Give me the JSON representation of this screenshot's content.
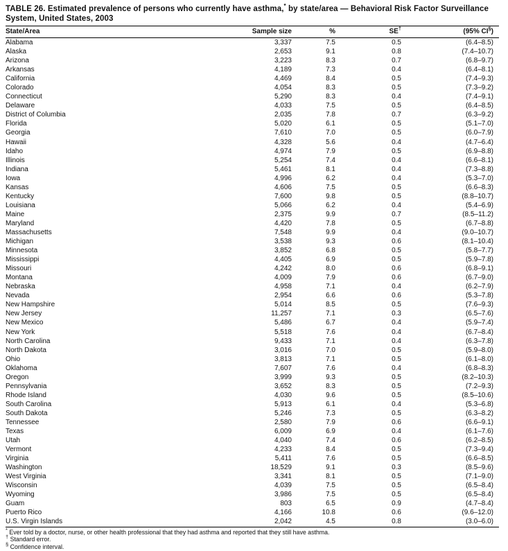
{
  "table": {
    "title": {
      "part1": "TABLE 26. Estimated prevalence of persons who currently have asthma,",
      "sup": "*",
      "part2": " by state/area — Behavioral Risk Factor Surveillance System, United States, 2003"
    },
    "columns": [
      {
        "label": "State/Area",
        "sup": "",
        "suffix": ""
      },
      {
        "label": "Sample size",
        "sup": "",
        "suffix": ""
      },
      {
        "label": "%",
        "sup": "",
        "suffix": ""
      },
      {
        "label": "SE",
        "sup": "†",
        "suffix": ""
      },
      {
        "label": "(95% CI",
        "sup": "§",
        "suffix": ")"
      }
    ],
    "rows": [
      [
        "Alabama",
        "3,337",
        "7.5",
        "0.5",
        "(6.4–8.5)"
      ],
      [
        "Alaska",
        "2,653",
        "9.1",
        "0.8",
        "(7.4–10.7)"
      ],
      [
        "Arizona",
        "3,223",
        "8.3",
        "0.7",
        "(6.8–9.7)"
      ],
      [
        "Arkansas",
        "4,189",
        "7.3",
        "0.4",
        "(6.4–8.1)"
      ],
      [
        "California",
        "4,469",
        "8.4",
        "0.5",
        "(7.4–9.3)"
      ],
      [
        "Colorado",
        "4,054",
        "8.3",
        "0.5",
        "(7.3–9.2)"
      ],
      [
        "Connecticut",
        "5,290",
        "8.3",
        "0.4",
        "(7.4–9.1)"
      ],
      [
        "Delaware",
        "4,033",
        "7.5",
        "0.5",
        "(6.4–8.5)"
      ],
      [
        "District of Columbia",
        "2,035",
        "7.8",
        "0.7",
        "(6.3–9.2)"
      ],
      [
        "Florida",
        "5,020",
        "6.1",
        "0.5",
        "(5.1–7.0)"
      ],
      [
        "Georgia",
        "7,610",
        "7.0",
        "0.5",
        "(6.0–7.9)"
      ],
      [
        "Hawaii",
        "4,328",
        "5.6",
        "0.4",
        "(4.7–6.4)"
      ],
      [
        "Idaho",
        "4,974",
        "7.9",
        "0.5",
        "(6.9–8.8)"
      ],
      [
        "Illinois",
        "5,254",
        "7.4",
        "0.4",
        "(6.6–8.1)"
      ],
      [
        "Indiana",
        "5,461",
        "8.1",
        "0.4",
        "(7.3–8.8)"
      ],
      [
        "Iowa",
        "4,996",
        "6.2",
        "0.4",
        "(5.3–7.0)"
      ],
      [
        "Kansas",
        "4,606",
        "7.5",
        "0.5",
        "(6.6–8.3)"
      ],
      [
        "Kentucky",
        "7,600",
        "9.8",
        "0.5",
        "(8.8–10.7)"
      ],
      [
        "Louisiana",
        "5,066",
        "6.2",
        "0.4",
        "(5.4–6.9)"
      ],
      [
        "Maine",
        "2,375",
        "9.9",
        "0.7",
        "(8.5–11.2)"
      ],
      [
        "Maryland",
        "4,420",
        "7.8",
        "0.5",
        "(6.7–8.8)"
      ],
      [
        "Massachusetts",
        "7,548",
        "9.9",
        "0.4",
        "(9.0–10.7)"
      ],
      [
        "Michigan",
        "3,538",
        "9.3",
        "0.6",
        "(8.1–10.4)"
      ],
      [
        "Minnesota",
        "3,852",
        "6.8",
        "0.5",
        "(5.8–7.7)"
      ],
      [
        "Mississippi",
        "4,405",
        "6.9",
        "0.5",
        "(5.9–7.8)"
      ],
      [
        "Missouri",
        "4,242",
        "8.0",
        "0.6",
        "(6.8–9.1)"
      ],
      [
        "Montana",
        "4,009",
        "7.9",
        "0.6",
        "(6.7–9.0)"
      ],
      [
        "Nebraska",
        "4,958",
        "7.1",
        "0.4",
        "(6.2–7.9)"
      ],
      [
        "Nevada",
        "2,954",
        "6.6",
        "0.6",
        "(5.3–7.8)"
      ],
      [
        "New Hampshire",
        "5,014",
        "8.5",
        "0.5",
        "(7.6–9.3)"
      ],
      [
        "New Jersey",
        "11,257",
        "7.1",
        "0.3",
        "(6.5–7.6)"
      ],
      [
        "New Mexico",
        "5,486",
        "6.7",
        "0.4",
        "(5.9–7.4)"
      ],
      [
        "New York",
        "5,518",
        "7.6",
        "0.4",
        "(6.7–8.4)"
      ],
      [
        "North Carolina",
        "9,433",
        "7.1",
        "0.4",
        "(6.3–7.8)"
      ],
      [
        "North Dakota",
        "3,016",
        "7.0",
        "0.5",
        "(5.9–8.0)"
      ],
      [
        "Ohio",
        "3,813",
        "7.1",
        "0.5",
        "(6.1–8.0)"
      ],
      [
        "Oklahoma",
        "7,607",
        "7.6",
        "0.4",
        "(6.8–8.3)"
      ],
      [
        "Oregon",
        "3,999",
        "9.3",
        "0.5",
        "(8.2–10.3)"
      ],
      [
        "Pennsylvania",
        "3,652",
        "8.3",
        "0.5",
        "(7.2–9.3)"
      ],
      [
        "Rhode Island",
        "4,030",
        "9.6",
        "0.5",
        "(8.5–10.6)"
      ],
      [
        "South Carolina",
        "5,913",
        "6.1",
        "0.4",
        "(5.3–6.8)"
      ],
      [
        "South Dakota",
        "5,246",
        "7.3",
        "0.5",
        "(6.3–8.2)"
      ],
      [
        "Tennessee",
        "2,580",
        "7.9",
        "0.6",
        "(6.6–9.1)"
      ],
      [
        "Texas",
        "6,009",
        "6.9",
        "0.4",
        "(6.1–7.6)"
      ],
      [
        "Utah",
        "4,040",
        "7.4",
        "0.6",
        "(6.2–8.5)"
      ],
      [
        "Vermont",
        "4,233",
        "8.4",
        "0.5",
        "(7.3–9.4)"
      ],
      [
        "Virginia",
        "5,411",
        "7.6",
        "0.5",
        "(6.6–8.5)"
      ],
      [
        "Washington",
        "18,529",
        "9.1",
        "0.3",
        "(8.5–9.6)"
      ],
      [
        "West Virginia",
        "3,341",
        "8.1",
        "0.5",
        "(7.1–9.0)"
      ],
      [
        "Wisconsin",
        "4,039",
        "7.5",
        "0.5",
        "(6.5–8.4)"
      ],
      [
        "Wyoming",
        "3,986",
        "7.5",
        "0.5",
        "(6.5–8.4)"
      ],
      [
        "Guam",
        "803",
        "6.5",
        "0.9",
        "(4.7–8.4)"
      ],
      [
        "Puerto Rico",
        "4,166",
        "10.8",
        "0.6",
        "(9.6–12.0)"
      ],
      [
        "U.S. Virgin Islands",
        "2,042",
        "4.5",
        "0.8",
        "(3.0–6.0)"
      ]
    ],
    "footnotes": [
      {
        "marker": "*",
        "text": "Ever told by a doctor, nurse, or other health professional that they had asthma and reported that they still have asthma."
      },
      {
        "marker": "†",
        "text": "Standard error."
      },
      {
        "marker": "§",
        "text": "Confidence interval."
      }
    ]
  }
}
